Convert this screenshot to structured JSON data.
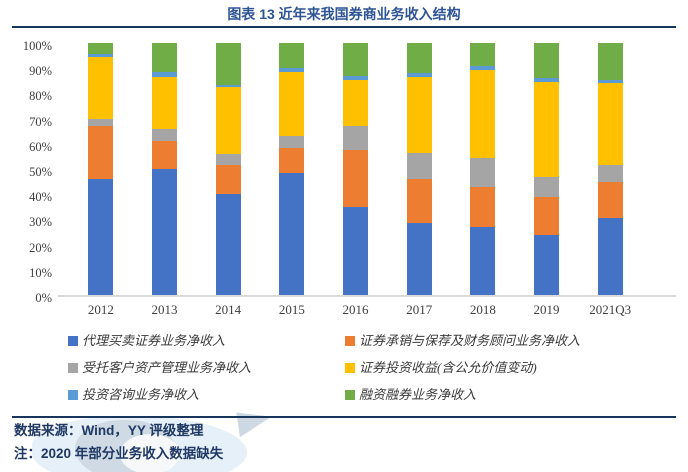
{
  "title": "图表 13 近年来我国券商业务收入结构",
  "colors": {
    "title_text": "#2E5496",
    "rule_line": "#17365D",
    "footer_text": "#1F3864",
    "axis_line": "#D9D9D9",
    "axis_text": "#404040"
  },
  "chart_data": {
    "type": "bar",
    "stacked": true,
    "grid": false,
    "legend_position": "bottom",
    "ylim": [
      0,
      100
    ],
    "yticks": [
      "0%",
      "10%",
      "20%",
      "30%",
      "40%",
      "50%",
      "60%",
      "70%",
      "80%",
      "90%",
      "100%"
    ],
    "categories": [
      "2012",
      "2013",
      "2014",
      "2015",
      "2016",
      "2017",
      "2018",
      "2019",
      "2021Q3"
    ],
    "series": [
      {
        "name": "代理买卖证券业务净收入",
        "color": "#4472C4",
        "values": [
          46,
          50,
          40,
          48.5,
          35,
          28.5,
          27,
          24,
          30.5
        ]
      },
      {
        "name": "证券承销与保荐及财务顾问业务净收入",
        "color": "#ED7D31",
        "values": [
          21,
          11,
          11.5,
          10,
          22.5,
          17.5,
          16,
          15,
          14.5
        ]
      },
      {
        "name": "受托客户资产管理业务净收入",
        "color": "#A5A5A5",
        "values": [
          3,
          5,
          4.5,
          4.5,
          9.5,
          10.5,
          11.5,
          8,
          6.5
        ]
      },
      {
        "name": "证券投资收益(含公允价值变动)",
        "color": "#FFC000",
        "values": [
          24.5,
          20.5,
          26.5,
          25.5,
          18.5,
          30,
          35,
          37.5,
          32.5
        ]
      },
      {
        "name": "投资咨询业务净收入",
        "color": "#5B9BD5",
        "values": [
          1,
          2,
          1,
          1.5,
          1.5,
          1.5,
          1.5,
          1.5,
          1.5
        ]
      },
      {
        "name": "融资融券业务净收入",
        "color": "#70AD47",
        "values": [
          4.5,
          11.5,
          16.5,
          10,
          13,
          12,
          9,
          14,
          14.5
        ]
      }
    ]
  },
  "footer": {
    "source": "数据来源：Wind，YY 评级整理",
    "note": "注：2020 年部分业务收入数据缺失",
    "watermark_icon": "faint-logo-watermark"
  }
}
